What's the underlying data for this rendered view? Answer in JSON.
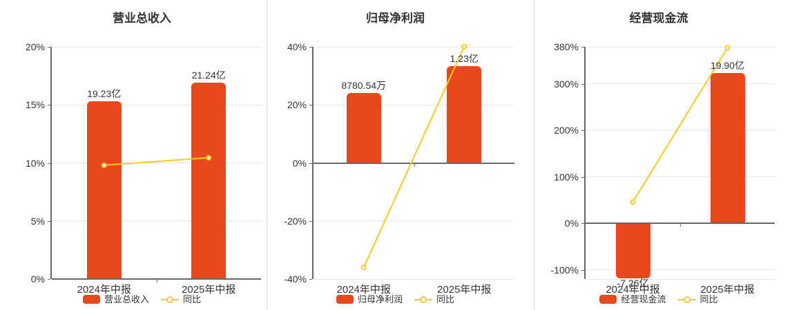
{
  "colors": {
    "bar": "#e8481c",
    "line": "#fbc926",
    "grid": "#dfe7ee",
    "axis": "#666666",
    "text": "#333333",
    "divider": "#dcdcdc",
    "background": "#ffffff",
    "marker_fill": "#ffffff"
  },
  "chart_data": [
    {
      "type": "bar",
      "title": "营业总收入",
      "categories": [
        "2024年中报",
        "2025年中报"
      ],
      "ylim": [
        0,
        20
      ],
      "yticks": [
        0,
        5,
        10,
        15,
        20
      ],
      "ytick_suffix": "%",
      "baseline": 0,
      "gridline_at_min": false,
      "grid": true,
      "legend_position": "bottom",
      "series": [
        {
          "name": "营业总收入",
          "type": "bar",
          "values": [
            "19.23亿",
            "21.24亿"
          ],
          "plotted_pct": [
            15.3,
            16.9
          ]
        },
        {
          "name": "同比",
          "type": "line",
          "values_pct": [
            9.8,
            10.45
          ]
        }
      ]
    },
    {
      "type": "bar",
      "title": "归母净利润",
      "categories": [
        "2024年中报",
        "2025年中报"
      ],
      "ylim": [
        -40,
        40
      ],
      "yticks": [
        -40,
        -20,
        0,
        20,
        40
      ],
      "ytick_suffix": "%",
      "baseline": 0,
      "gridline_at_min": false,
      "grid": true,
      "legend_position": "bottom",
      "series": [
        {
          "name": "归母净利润",
          "type": "bar",
          "values": [
            "8780.54万",
            "1.23亿"
          ],
          "plotted_pct": [
            24.1,
            33.4
          ]
        },
        {
          "name": "同比",
          "type": "line",
          "values_pct": [
            -36,
            40.1
          ]
        }
      ]
    },
    {
      "type": "bar",
      "title": "经营现金流",
      "categories": [
        "2024年中报",
        "2025年中报"
      ],
      "ylim": [
        -120,
        380
      ],
      "yticks": [
        -100,
        0,
        100,
        200,
        300,
        380
      ],
      "ytick_suffix": "%",
      "baseline": 0,
      "gridline_at_min": true,
      "grid": true,
      "legend_position": "bottom",
      "series": [
        {
          "name": "经营现金流",
          "type": "bar",
          "values": [
            "-7.26亿",
            "19.90亿"
          ],
          "plotted_pct": [
            -118,
            324
          ]
        },
        {
          "name": "同比",
          "type": "line",
          "values_pct": [
            46,
            378
          ]
        }
      ]
    }
  ]
}
